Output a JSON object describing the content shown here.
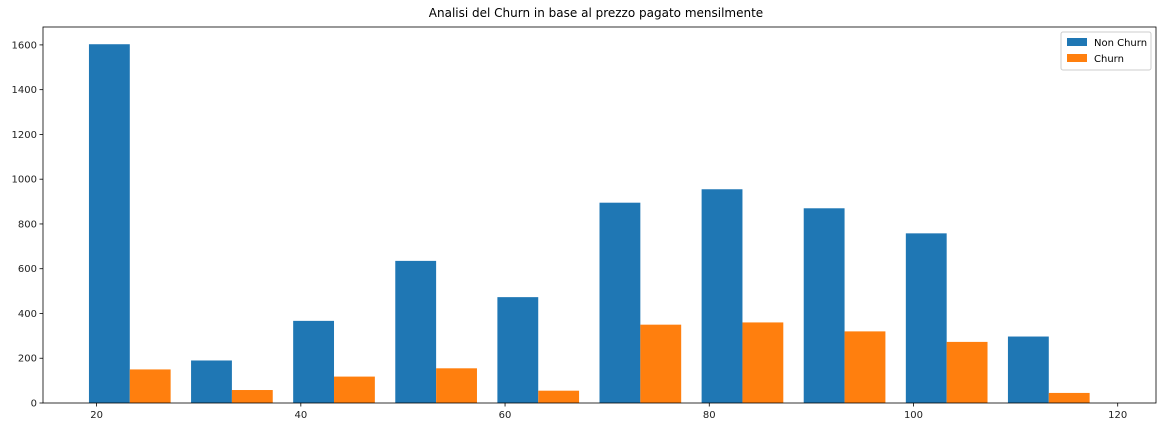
{
  "chart_data": {
    "type": "bar",
    "title": "Analisi del Churn in base al prezzo pagato mensilmente",
    "xlabel": "",
    "ylabel": "",
    "xlim": [
      14.75,
      123.75
    ],
    "ylim": [
      0,
      1680
    ],
    "xticks": [
      20,
      40,
      60,
      80,
      100,
      120
    ],
    "yticks": [
      0,
      200,
      400,
      600,
      800,
      1000,
      1200,
      1400,
      1600
    ],
    "bin_edges": [
      18.25,
      28.25,
      38.25,
      48.25,
      58.25,
      68.25,
      78.25,
      88.25,
      98.25,
      108.25,
      118.25
    ],
    "grid": false,
    "legend_position": "top-right",
    "series": [
      {
        "name": "Non Churn",
        "color": "#1f77b4",
        "values": [
          1603,
          190,
          367,
          635,
          473,
          895,
          955,
          870,
          758,
          297
        ]
      },
      {
        "name": "Churn",
        "color": "#ff7f0e",
        "values": [
          150,
          58,
          118,
          155,
          55,
          350,
          360,
          320,
          273,
          45
        ]
      }
    ]
  }
}
